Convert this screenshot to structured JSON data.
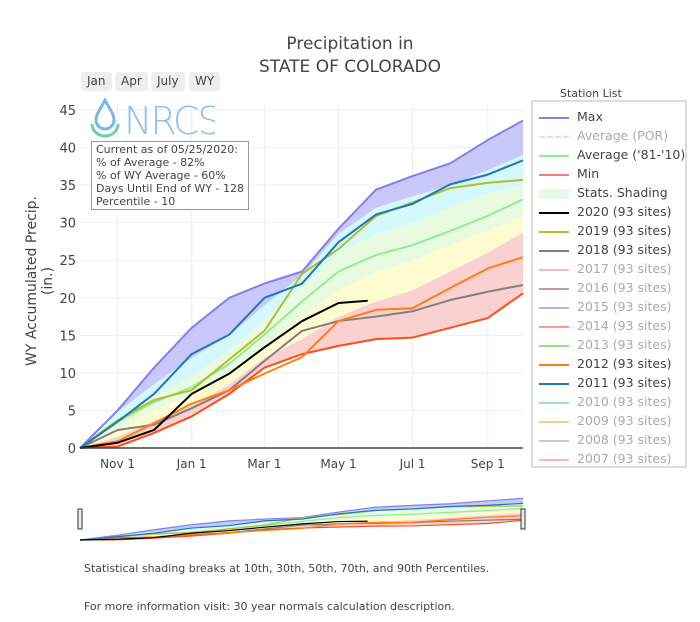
{
  "title_line1": "Precipitation in",
  "title_line2": "STATE OF COLORADO",
  "range_buttons": [
    "Jan",
    "Apr",
    "July",
    "WY"
  ],
  "logo_text": "NRCS",
  "info_box": [
    "Current as of 05/25/2020:",
    "% of Average - 82%",
    "% of WY Average - 60%",
    "Days Until End of WY - 128",
    "Percentile - 10"
  ],
  "legend_title": "Station List",
  "legend": [
    {
      "label": "Max",
      "color": "#8080f0",
      "visible": true
    },
    {
      "label": "Average (POR)",
      "color": "#c8f5c8",
      "visible": false,
      "dash": true
    },
    {
      "label": "Average ('81-'10)",
      "color": "#90ee90",
      "visible": true
    },
    {
      "label": "Min",
      "color": "#f08080",
      "visible": true
    },
    {
      "label": "Stats. Shading",
      "color": "#e6fbe6",
      "visible": true,
      "block": true
    },
    {
      "label": "2020 (93 sites)",
      "color": "#000000",
      "visible": true
    },
    {
      "label": "2019 (93 sites)",
      "color": "#b5bd2a",
      "visible": true
    },
    {
      "label": "2018 (93 sites)",
      "color": "#808080",
      "visible": true
    },
    {
      "label": "2017 (93 sites)",
      "color": "#f7b6d2",
      "visible": false
    },
    {
      "label": "2016 (93 sites)",
      "color": "#c49c94",
      "visible": false
    },
    {
      "label": "2015 (93 sites)",
      "color": "#c5b0d5",
      "visible": false
    },
    {
      "label": "2014 (93 sites)",
      "color": "#ff9896",
      "visible": false
    },
    {
      "label": "2013 (93 sites)",
      "color": "#98df8a",
      "visible": false
    },
    {
      "label": "2012 (93 sites)",
      "color": "#ff7f0e",
      "visible": true
    },
    {
      "label": "2011 (93 sites)",
      "color": "#1f77b4",
      "visible": true
    },
    {
      "label": "2010 (93 sites)",
      "color": "#9edae5",
      "visible": false
    },
    {
      "label": "2009 (93 sites)",
      "color": "#dbdb8d",
      "visible": false
    },
    {
      "label": "2008 (93 sites)",
      "color": "#c7c7c7",
      "visible": false
    },
    {
      "label": "2007 (93 sites)",
      "color": "#f7b6d2",
      "visible": false
    }
  ],
  "footer_line1": "Statistical shading breaks at 10th, 30th, 50th, 70th, and 90th Percentiles.",
  "footer_line2": "For more information visit: 30 year normals calculation description.",
  "chart_data": {
    "type": "line",
    "ylabel": "WY Accumulated Precip. (in.)",
    "ylim": [
      0,
      45
    ],
    "yticks": [
      0,
      5,
      10,
      15,
      20,
      25,
      30,
      35,
      40,
      45
    ],
    "xlim": [
      "2019-10-01",
      "2020-09-30"
    ],
    "xticks": [
      {
        "date": "2019-11-01",
        "label": "Nov  1"
      },
      {
        "date": "2020-01-01",
        "label": "Jan  1"
      },
      {
        "date": "2020-03-01",
        "label": "Mar  1"
      },
      {
        "date": "2020-05-01",
        "label": "May  1"
      },
      {
        "date": "2020-07-01",
        "label": "Jul  1"
      },
      {
        "date": "2020-09-01",
        "label": "Sep  1"
      }
    ],
    "grid": true,
    "x": [
      "2019-10-01",
      "2019-11-01",
      "2019-12-01",
      "2020-01-01",
      "2020-02-01",
      "2020-03-01",
      "2020-04-01",
      "2020-05-01",
      "2020-06-01",
      "2020-07-01",
      "2020-08-01",
      "2020-09-01",
      "2020-09-30"
    ],
    "percentiles": {
      "p10": [
        0,
        1.5,
        3.6,
        5.6,
        8.5,
        12,
        14.5,
        17.5,
        19.5,
        21,
        23.5,
        26,
        28.7
      ],
      "p30": [
        0,
        2.5,
        5,
        7.2,
        10.2,
        13.6,
        17.5,
        21,
        23.5,
        25,
        27,
        29,
        30.9
      ],
      "p70": [
        0,
        4,
        7,
        9.5,
        13,
        17,
        21.5,
        26,
        28.5,
        30,
        32,
        34,
        35
      ],
      "p90": [
        0,
        4.8,
        8.5,
        12,
        15,
        19,
        23,
        28.5,
        32,
        33.5,
        35,
        37,
        39
      ]
    },
    "shading_colors": {
      "min_p10": "#fbd0d0",
      "p10_p30": "#fdfbd0",
      "p30_p70": "#e8fbe0",
      "p70_p90": "#d4f8fb",
      "p90_max": "#c8c8fa"
    },
    "series": [
      {
        "name": "Max",
        "color": "#8080f0",
        "values": [
          0,
          5,
          10.7,
          16,
          20,
          21.9,
          23.5,
          29.2,
          34.4,
          36.2,
          37.9,
          41,
          43.6
        ]
      },
      {
        "name": "Average ('81-'10)",
        "color": "#90ee90",
        "values": [
          0,
          3.5,
          6.1,
          8.1,
          11.2,
          15.1,
          19.5,
          23.5,
          25.7,
          27,
          28.9,
          30.9,
          33.1
        ]
      },
      {
        "name": "Min",
        "color": "#ff4d1a",
        "values": [
          0,
          0.2,
          2,
          4.2,
          7.2,
          10.7,
          12.5,
          13.6,
          14.5,
          14.7,
          16,
          17.3,
          20.6
        ]
      },
      {
        "name": "2018 (93 sites)",
        "color": "#808080",
        "values": [
          0,
          2.4,
          3.1,
          5.3,
          7.7,
          11.6,
          15.6,
          16.9,
          17.5,
          18.2,
          19.7,
          20.8,
          21.7
        ]
      },
      {
        "name": "2012 (93 sites)",
        "color": "#ff7f0e",
        "values": [
          0,
          0.9,
          3.3,
          5.9,
          7.7,
          9.9,
          12.1,
          16.9,
          18.4,
          18.6,
          21.3,
          23.9,
          25.4
        ]
      },
      {
        "name": "2019 (93 sites)",
        "color": "#b5bd2a",
        "values": [
          0,
          3.7,
          6.4,
          7.7,
          11.8,
          15.6,
          23.2,
          26.5,
          30.9,
          32.7,
          34.6,
          35.3,
          35.7
        ]
      },
      {
        "name": "2011 (93 sites)",
        "color": "#1f77b4",
        "values": [
          0,
          3.5,
          7.2,
          12.5,
          15.1,
          20,
          21.9,
          27.4,
          31.1,
          32.5,
          35.1,
          36.4,
          38.3
        ]
      },
      {
        "name": "2020 (93 sites)",
        "color": "#000000",
        "x": [
          "2019-10-01",
          "2019-11-01",
          "2019-12-01",
          "2020-01-01",
          "2020-02-01",
          "2020-03-01",
          "2020-04-01",
          "2020-05-01",
          "2020-05-25"
        ],
        "values": [
          0,
          0.7,
          2.4,
          7.2,
          9.9,
          13.4,
          16.9,
          19.3,
          19.6
        ]
      }
    ]
  }
}
